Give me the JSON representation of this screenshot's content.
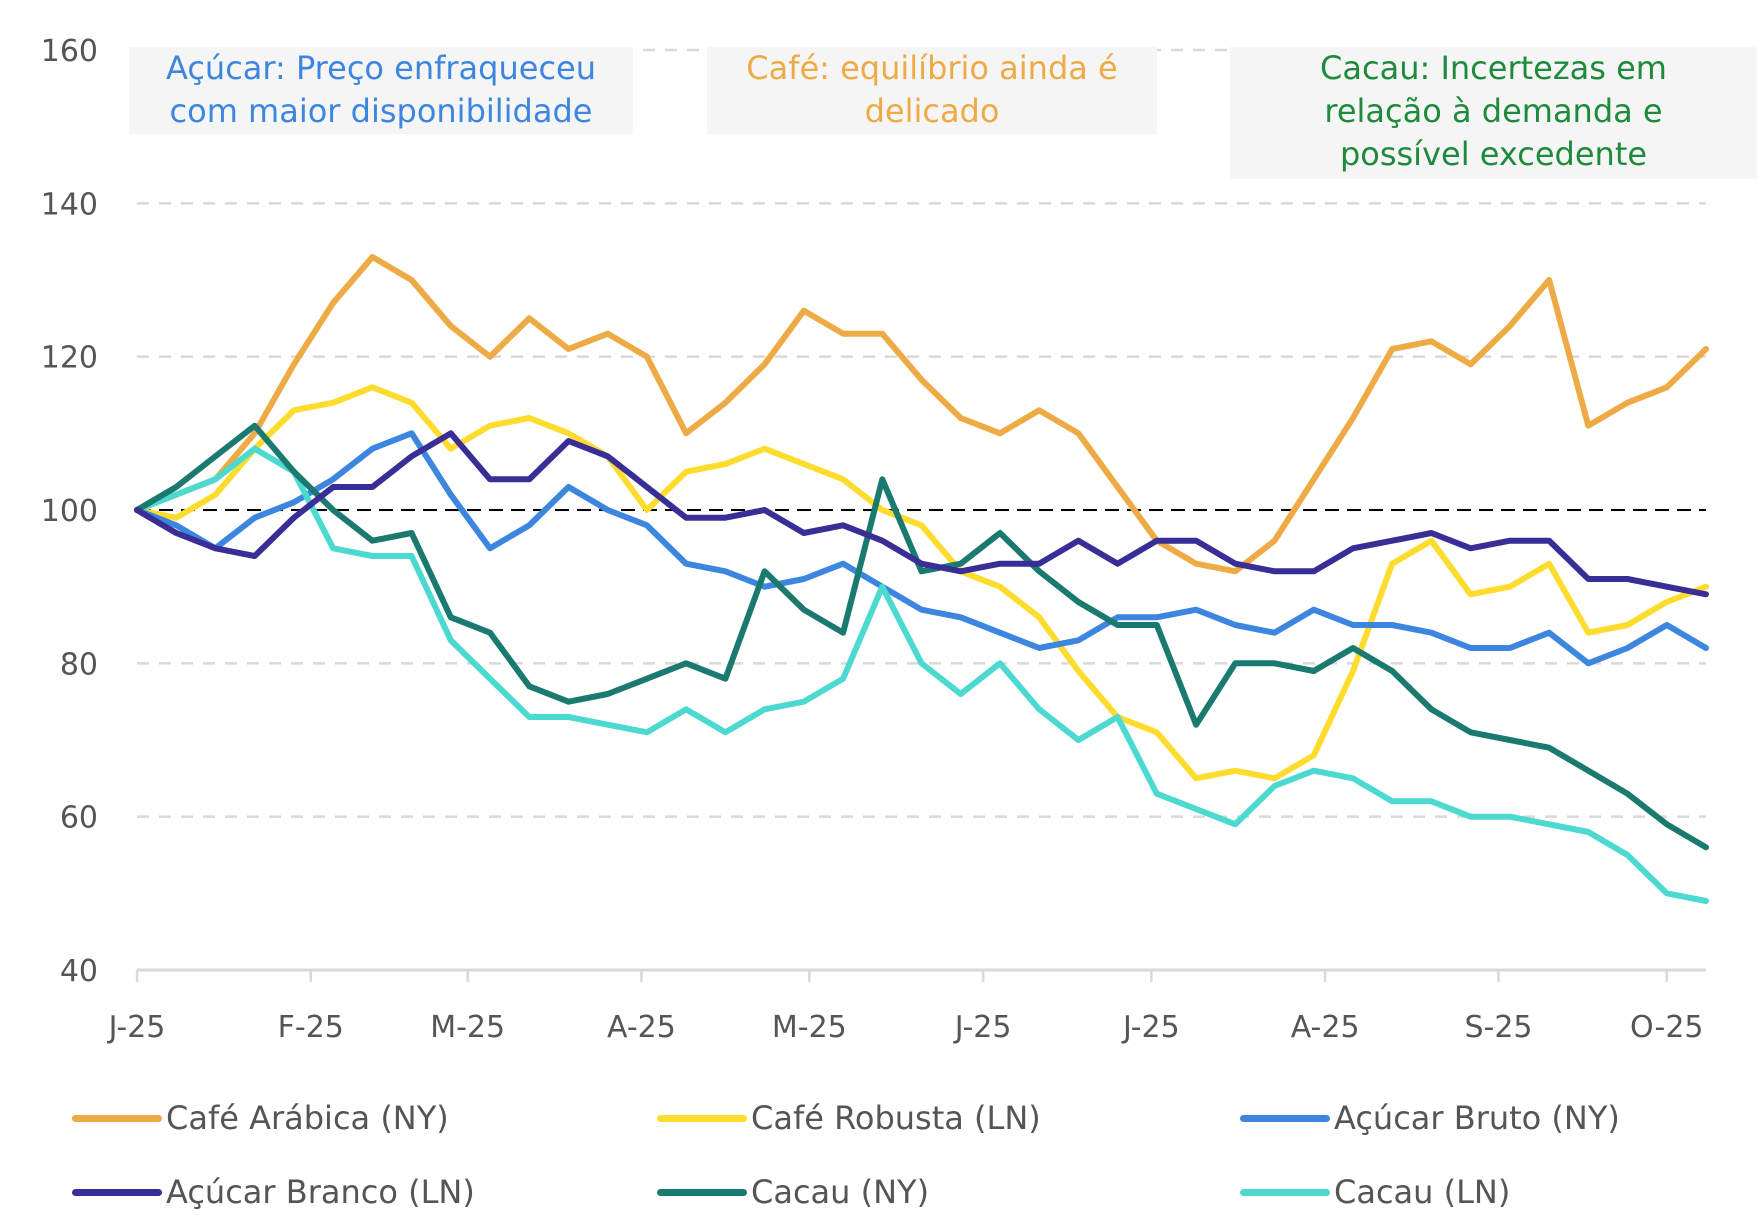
{
  "chart_data": {
    "type": "line",
    "title": "",
    "xlabel": "",
    "ylabel": "",
    "x_unit": "weeks since start of January 2025",
    "x": [
      0,
      1,
      2,
      3,
      4,
      5,
      6,
      7,
      8,
      9,
      10,
      11,
      12,
      13,
      14,
      15,
      16,
      17,
      18,
      19,
      20,
      21,
      22,
      23,
      24,
      25,
      26,
      27,
      28,
      29,
      30,
      31,
      32,
      33,
      34,
      35,
      36,
      37,
      38,
      39,
      40
    ],
    "xticks": [
      {
        "label": "J-25",
        "x": 0
      },
      {
        "label": "F-25",
        "x": 4.43
      },
      {
        "label": "M-25",
        "x": 8.43
      },
      {
        "label": "A-25",
        "x": 12.86
      },
      {
        "label": "M-25",
        "x": 17.14
      },
      {
        "label": "J-25",
        "x": 21.57
      },
      {
        "label": "J-25",
        "x": 25.86
      },
      {
        "label": "A-25",
        "x": 30.29
      },
      {
        "label": "S-25",
        "x": 34.71
      },
      {
        "label": "O-25",
        "x": 39.0
      }
    ],
    "xlim": [
      0,
      40
    ],
    "ylim": [
      40,
      160
    ],
    "yticks": [
      40,
      60,
      80,
      100,
      120,
      140,
      160
    ],
    "grid": "horizontal dashed",
    "reference_line": {
      "y": 100,
      "style": "dashed",
      "color": "#000000"
    },
    "legend_position": "bottom",
    "series": [
      {
        "name": "Café Arábica (NY)",
        "color": "#EEAA45",
        "values": [
          100,
          102,
          104,
          110,
          119,
          127,
          133,
          130,
          124,
          120,
          125,
          121,
          123,
          120,
          110,
          114,
          119,
          126,
          123,
          123,
          117,
          112,
          110,
          113,
          110,
          103,
          96,
          93,
          92,
          96,
          104,
          112,
          121,
          122,
          119,
          124,
          130,
          111,
          114,
          116,
          121
        ]
      },
      {
        "name": "Café Robusta (LN)",
        "color": "#FDDC2E",
        "values": [
          100,
          99,
          102,
          108,
          113,
          114,
          116,
          114,
          108,
          111,
          112,
          110,
          107,
          100,
          105,
          106,
          108,
          106,
          104,
          100,
          98,
          92,
          90,
          86,
          79,
          73,
          71,
          65,
          66,
          65,
          68,
          79,
          93,
          96,
          89,
          90,
          93,
          84,
          85,
          88,
          90
        ]
      },
      {
        "name": "Açúcar Bruto (NY)",
        "color": "#3C86E0",
        "values": [
          100,
          98,
          95,
          99,
          101,
          104,
          108,
          110,
          102,
          95,
          98,
          103,
          100,
          98,
          93,
          92,
          90,
          91,
          93,
          90,
          87,
          86,
          84,
          82,
          83,
          86,
          86,
          87,
          85,
          84,
          87,
          85,
          85,
          84,
          82,
          82,
          84,
          80,
          82,
          85,
          82
        ]
      },
      {
        "name": "Açúcar Branco (LN)",
        "color": "#392E96",
        "values": [
          100,
          97,
          95,
          94,
          99,
          103,
          103,
          107,
          110,
          104,
          104,
          109,
          107,
          103,
          99,
          99,
          100,
          97,
          98,
          96,
          93,
          92,
          93,
          93,
          96,
          93,
          96,
          96,
          93,
          92,
          92,
          95,
          96,
          97,
          95,
          96,
          96,
          91,
          91,
          90,
          89
        ]
      },
      {
        "name": "Cacau (NY)",
        "color": "#1A7A70",
        "values": [
          100,
          103,
          107,
          111,
          105,
          100,
          96,
          97,
          86,
          84,
          77,
          75,
          76,
          78,
          80,
          78,
          92,
          87,
          84,
          104,
          92,
          93,
          97,
          92,
          88,
          85,
          85,
          72,
          80,
          80,
          79,
          82,
          79,
          74,
          71,
          70,
          69,
          66,
          63,
          59,
          56
        ]
      },
      {
        "name": "Cacau (LN)",
        "color": "#4BD9D0",
        "values": [
          100,
          102,
          104,
          108,
          105,
          95,
          94,
          94,
          83,
          78,
          73,
          73,
          72,
          71,
          74,
          71,
          74,
          75,
          78,
          90,
          80,
          76,
          80,
          74,
          70,
          73,
          63,
          61,
          59,
          64,
          66,
          65,
          62,
          62,
          60,
          60,
          59,
          58,
          55,
          50,
          49
        ]
      }
    ],
    "annotations": [
      {
        "text": "Açúcar: Preço enfraqueceu com maior disponibilidade",
        "color": "#3C86E0"
      },
      {
        "text": "Café: equilíbrio ainda é delicado",
        "color": "#EEAA45"
      },
      {
        "text": "Cacau: Incertezas em relação à demanda e possível excedente",
        "color": "#1E8A3C"
      }
    ]
  },
  "annotations": {
    "acucar": {
      "line1": "Açúcar: Preço enfraqueceu",
      "line2": "com maior disponibilidade"
    },
    "cafe": {
      "line1": "Café: equilíbrio ainda é",
      "line2": "delicado"
    },
    "cacau": {
      "line1": "Cacau: Incertezas em",
      "line2": "relação à demanda e",
      "line3": "possível excedente"
    }
  },
  "legend": [
    {
      "label": "Café Arábica (NY)",
      "color": "#EEAA45"
    },
    {
      "label": "Café Robusta (LN)",
      "color": "#FDDC2E"
    },
    {
      "label": "Açúcar Bruto (NY)",
      "color": "#3C86E0"
    },
    {
      "label": "Açúcar Branco (LN)",
      "color": "#392E96"
    },
    {
      "label": "Cacau (NY)",
      "color": "#1A7A70"
    },
    {
      "label": "Cacau (LN)",
      "color": "#4BD9D0"
    }
  ]
}
